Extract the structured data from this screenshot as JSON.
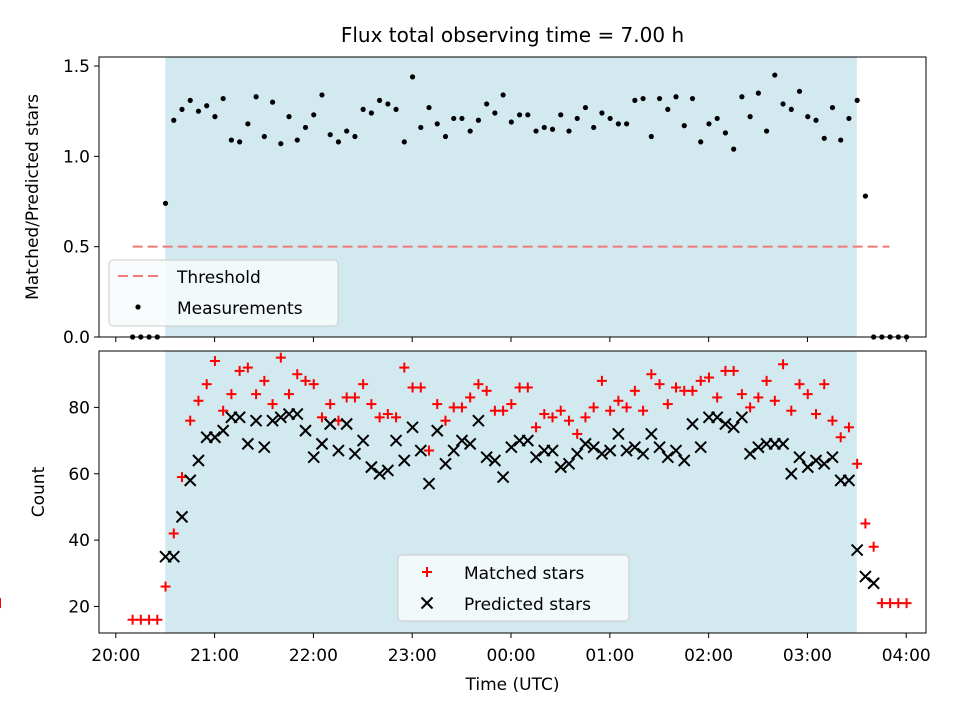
{
  "chart_data": [
    {
      "type": "scatter",
      "panel": "top",
      "title": "Flux total observing time = 7.00 h",
      "ylabel": "Matched/Predicted stars",
      "xlabel": "",
      "ylim": [
        0,
        1.55
      ],
      "yticks": [
        0.0,
        0.5,
        1.0,
        1.5
      ],
      "ytick_labels": [
        "0.0",
        "0.5",
        "1.0",
        "1.5"
      ],
      "legend_position": "lower-left",
      "shaded_region": {
        "x0": 20.5,
        "x1": 27.5,
        "color": "#d2e9f0"
      },
      "threshold": {
        "name": "Threshold",
        "x0": 20.17,
        "x1": 27.83,
        "y": 0.5,
        "color": "#f07a7a"
      },
      "measurements_name": "Measurements",
      "measurements_color": "#000000"
    },
    {
      "type": "scatter",
      "panel": "bottom",
      "xlabel": "Time (UTC)",
      "ylabel": "Count",
      "ylim": [
        12,
        97
      ],
      "yticks": [
        20,
        40,
        60,
        80
      ],
      "ytick_labels": [
        "20",
        "40",
        "60",
        "80"
      ],
      "xlim": [
        19.83,
        28.2
      ],
      "xticks": [
        20,
        21,
        22,
        23,
        24,
        25,
        26,
        27,
        28
      ],
      "xtick_labels": [
        "20:00",
        "21:00",
        "22:00",
        "23:00",
        "00:00",
        "01:00",
        "02:00",
        "03:00",
        "04:00"
      ],
      "legend_position": "lower-center",
      "shaded_region": {
        "x0": 20.5,
        "x1": 27.5,
        "color": "#d2e9f0"
      },
      "start_time_hours": 20.17,
      "step_minutes": 5,
      "series": [
        {
          "name": "Matched stars",
          "marker": "plus",
          "color": "#ff0000",
          "values": [
            16,
            16,
            16,
            16,
            26,
            42,
            59,
            76,
            82,
            87,
            94,
            79,
            84,
            91,
            92,
            84,
            88,
            81,
            95,
            84,
            90,
            88,
            87,
            77,
            81,
            76,
            83,
            83,
            87,
            81,
            77,
            78,
            77,
            92,
            86,
            86,
            67,
            81,
            76,
            80,
            80,
            83,
            87,
            85,
            79,
            79,
            81,
            86,
            86,
            74,
            78,
            77,
            79,
            76,
            72,
            77,
            80,
            88,
            79,
            82,
            80,
            85,
            79,
            90,
            87,
            81,
            86,
            85,
            85,
            88,
            89,
            83,
            91,
            91,
            84,
            80,
            83,
            88,
            82,
            93,
            79,
            87,
            84,
            78,
            87,
            76,
            71,
            74,
            63,
            45,
            38,
            21,
            21,
            21,
            21,
            21
          ]
        },
        {
          "name": "Predicted stars",
          "marker": "x",
          "color": "#000000",
          "values": [
            null,
            null,
            null,
            null,
            35,
            35,
            47,
            58,
            64,
            71,
            71,
            73,
            77,
            77,
            69,
            76,
            68,
            76,
            77,
            78,
            78,
            73,
            65,
            69,
            75,
            67,
            75,
            66,
            70,
            62,
            60,
            61,
            70,
            64,
            74,
            67,
            57,
            73,
            63,
            67,
            70,
            69,
            76,
            65,
            64,
            59,
            68,
            70,
            70,
            65,
            67,
            67,
            62,
            63,
            66,
            69,
            68,
            66,
            67,
            72,
            67,
            68,
            66,
            72,
            68,
            65,
            67,
            64,
            75,
            68,
            77,
            77,
            75,
            74,
            77,
            66,
            68,
            69,
            69,
            69,
            60,
            65,
            62,
            64,
            63,
            65,
            58,
            58,
            37,
            29,
            27,
            null,
            null,
            null,
            null,
            null
          ]
        }
      ],
      "ratio_values": [
        0,
        0,
        0,
        0,
        0.74,
        1.2,
        1.26,
        1.31,
        1.25,
        1.28,
        1.22,
        1.32,
        1.09,
        1.08,
        1.18,
        1.33,
        1.11,
        1.3,
        1.07,
        1.22,
        1.09,
        1.16,
        1.23,
        1.34,
        1.12,
        1.08,
        1.14,
        1.11,
        1.26,
        1.24,
        1.31,
        1.29,
        1.26,
        1.08,
        1.44,
        1.16,
        1.27,
        1.18,
        1.11,
        1.21,
        1.21,
        1.14,
        1.2,
        1.29,
        1.24,
        1.34,
        1.19,
        1.23,
        1.23,
        1.14,
        1.16,
        1.15,
        1.23,
        1.14,
        1.21,
        1.27,
        1.16,
        1.24,
        1.21,
        1.18,
        1.18,
        1.31,
        1.32,
        1.11,
        1.32,
        1.26,
        1.33,
        1.17,
        1.32,
        1.08,
        1.18,
        1.21,
        1.13,
        1.04,
        1.33,
        1.22,
        1.35,
        1.14,
        1.45,
        1.29,
        1.26,
        1.36,
        1.22,
        1.2,
        1.1,
        1.27,
        1.09,
        1.21,
        1.31,
        0.78,
        0,
        0,
        0,
        0,
        0
      ]
    }
  ]
}
